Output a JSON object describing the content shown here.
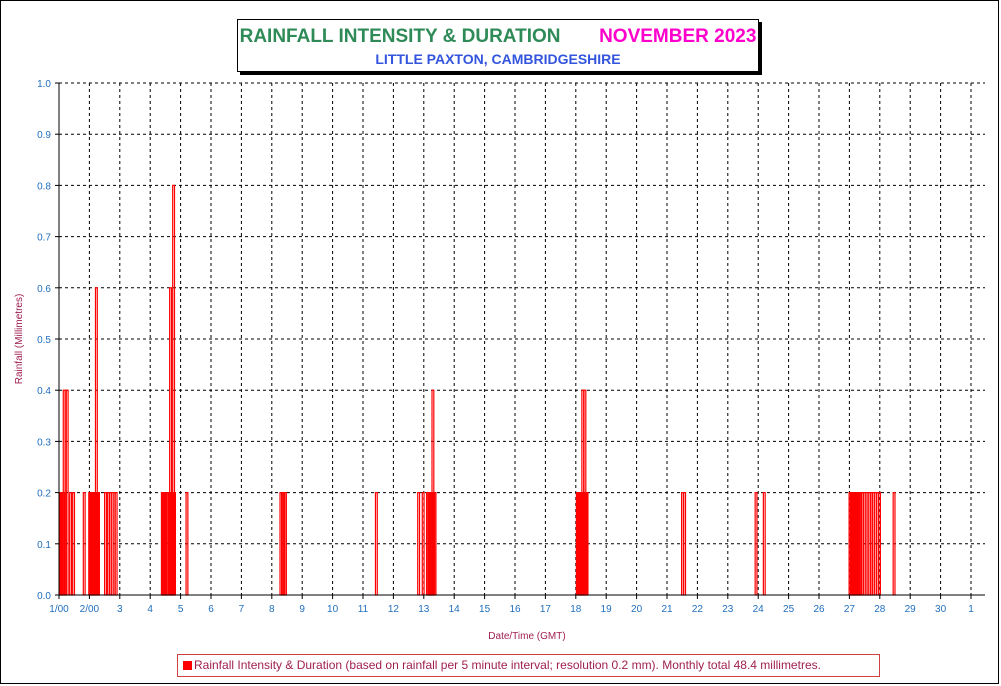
{
  "chart_data": {
    "type": "bar",
    "title": "RAINFALL INTENSITY & DURATION",
    "title_period": "NOVEMBER 2023",
    "subtitle": "LITTLE PAXTON, CAMBRIDGESHIRE",
    "xlabel": "Date/Time (GMT)",
    "ylabel": "Rainfall (Millimetres)",
    "ylim": [
      0,
      1.0
    ],
    "yticks": [
      "0.0",
      "0.1",
      "0.2",
      "0.3",
      "0.4",
      "0.5",
      "0.6",
      "0.7",
      "0.8",
      "0.9",
      "1.0"
    ],
    "xticks": [
      "1/00",
      "2/00",
      "3",
      "4",
      "5",
      "6",
      "7",
      "8",
      "9",
      "10",
      "11",
      "12",
      "13",
      "14",
      "15",
      "16",
      "17",
      "18",
      "19",
      "20",
      "21",
      "22",
      "23",
      "24",
      "25",
      "26",
      "27",
      "28",
      "29",
      "30",
      "1"
    ],
    "x_unit": "days (day of November 2023, fractional)",
    "grid": true,
    "bar_color": "#ff0000",
    "legend": "Rainfall Intensity & Duration (based on rainfall per 5 minute interval; resolution 0.2 mm). Monthly total 48.4 millimetres.",
    "legend_position": "bottom",
    "points": [
      {
        "x": 1.02,
        "y": 0.2
      },
      {
        "x": 1.05,
        "y": 0.2
      },
      {
        "x": 1.08,
        "y": 0.2
      },
      {
        "x": 1.14,
        "y": 0.4
      },
      {
        "x": 1.18,
        "y": 0.2
      },
      {
        "x": 1.24,
        "y": 0.4
      },
      {
        "x": 1.35,
        "y": 0.2
      },
      {
        "x": 1.45,
        "y": 0.2
      },
      {
        "x": 1.8,
        "y": 0.2
      },
      {
        "x": 1.98,
        "y": 0.2
      },
      {
        "x": 2.01,
        "y": 0.2
      },
      {
        "x": 2.05,
        "y": 0.2
      },
      {
        "x": 2.08,
        "y": 0.2
      },
      {
        "x": 2.12,
        "y": 0.2
      },
      {
        "x": 2.16,
        "y": 0.2
      },
      {
        "x": 2.2,
        "y": 0.6
      },
      {
        "x": 2.24,
        "y": 0.2
      },
      {
        "x": 2.27,
        "y": 0.2
      },
      {
        "x": 2.5,
        "y": 0.2
      },
      {
        "x": 2.6,
        "y": 0.2
      },
      {
        "x": 2.66,
        "y": 0.2
      },
      {
        "x": 2.72,
        "y": 0.2
      },
      {
        "x": 2.78,
        "y": 0.2
      },
      {
        "x": 2.85,
        "y": 0.2
      },
      {
        "x": 4.37,
        "y": 0.2
      },
      {
        "x": 4.4,
        "y": 0.2
      },
      {
        "x": 4.43,
        "y": 0.2
      },
      {
        "x": 4.46,
        "y": 0.2
      },
      {
        "x": 4.5,
        "y": 0.2
      },
      {
        "x": 4.55,
        "y": 0.2
      },
      {
        "x": 4.6,
        "y": 0.2
      },
      {
        "x": 4.64,
        "y": 0.6
      },
      {
        "x": 4.67,
        "y": 0.2
      },
      {
        "x": 4.7,
        "y": 0.2
      },
      {
        "x": 4.74,
        "y": 0.8
      },
      {
        "x": 4.77,
        "y": 0.2
      },
      {
        "x": 5.18,
        "y": 0.2
      },
      {
        "x": 8.27,
        "y": 0.2
      },
      {
        "x": 8.32,
        "y": 0.2
      },
      {
        "x": 8.37,
        "y": 0.2
      },
      {
        "x": 8.42,
        "y": 0.2
      },
      {
        "x": 11.41,
        "y": 0.2
      },
      {
        "x": 12.8,
        "y": 0.2
      },
      {
        "x": 12.95,
        "y": 0.2
      },
      {
        "x": 13.09,
        "y": 0.2
      },
      {
        "x": 13.13,
        "y": 0.2
      },
      {
        "x": 13.16,
        "y": 0.2
      },
      {
        "x": 13.2,
        "y": 0.2
      },
      {
        "x": 13.23,
        "y": 0.2
      },
      {
        "x": 13.27,
        "y": 0.4
      },
      {
        "x": 13.3,
        "y": 0.2
      },
      {
        "x": 13.34,
        "y": 0.2
      },
      {
        "x": 18.02,
        "y": 0.2
      },
      {
        "x": 18.06,
        "y": 0.2
      },
      {
        "x": 18.1,
        "y": 0.2
      },
      {
        "x": 18.13,
        "y": 0.2
      },
      {
        "x": 18.17,
        "y": 0.2
      },
      {
        "x": 18.2,
        "y": 0.4
      },
      {
        "x": 18.24,
        "y": 0.2
      },
      {
        "x": 18.27,
        "y": 0.4
      },
      {
        "x": 18.31,
        "y": 0.2
      },
      {
        "x": 18.34,
        "y": 0.2
      },
      {
        "x": 21.48,
        "y": 0.2
      },
      {
        "x": 21.55,
        "y": 0.2
      },
      {
        "x": 23.9,
        "y": 0.2
      },
      {
        "x": 24.17,
        "y": 0.2
      },
      {
        "x": 26.99,
        "y": 0.2
      },
      {
        "x": 27.03,
        "y": 0.2
      },
      {
        "x": 27.07,
        "y": 0.2
      },
      {
        "x": 27.1,
        "y": 0.2
      },
      {
        "x": 27.14,
        "y": 0.2
      },
      {
        "x": 27.18,
        "y": 0.2
      },
      {
        "x": 27.22,
        "y": 0.2
      },
      {
        "x": 27.26,
        "y": 0.2
      },
      {
        "x": 27.3,
        "y": 0.2
      },
      {
        "x": 27.34,
        "y": 0.2
      },
      {
        "x": 27.4,
        "y": 0.2
      },
      {
        "x": 27.46,
        "y": 0.2
      },
      {
        "x": 27.52,
        "y": 0.2
      },
      {
        "x": 27.58,
        "y": 0.2
      },
      {
        "x": 27.64,
        "y": 0.2
      },
      {
        "x": 27.7,
        "y": 0.2
      },
      {
        "x": 27.76,
        "y": 0.2
      },
      {
        "x": 27.83,
        "y": 0.2
      },
      {
        "x": 27.9,
        "y": 0.2
      },
      {
        "x": 27.96,
        "y": 0.2
      },
      {
        "x": 28.44,
        "y": 0.2
      }
    ]
  },
  "colors": {
    "title": "#2e8b57",
    "period": "#ff00cc",
    "subtitle": "#3355dd",
    "tick_label": "#1f6fbf",
    "axis_label": "#a02050",
    "bars": "#ff0000",
    "grid": "#000000"
  }
}
